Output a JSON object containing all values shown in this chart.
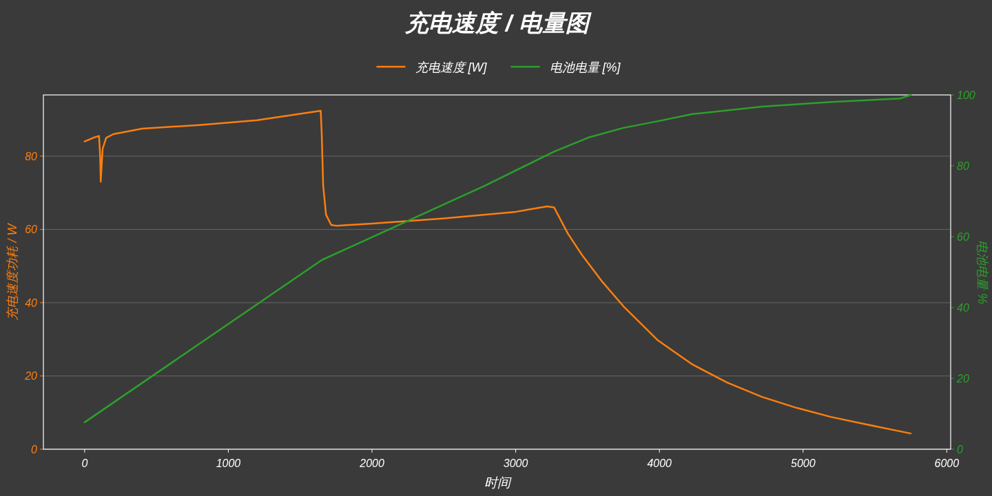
{
  "chart_data": {
    "type": "line",
    "title": "充电速度 / 电量图",
    "xlabel": "时间",
    "ylabel": "充电速度功耗 / W",
    "y2label": "电池电量 %",
    "xlim": [
      -287,
      6027
    ],
    "ylim": [
      0,
      96.7
    ],
    "y2lim": [
      0,
      100
    ],
    "xticks": [
      0,
      1000,
      2000,
      3000,
      4000,
      5000,
      6000
    ],
    "yticks": [
      0,
      20,
      40,
      60,
      80
    ],
    "y2ticks": [
      0,
      20,
      40,
      60,
      80,
      100
    ],
    "grid": "y",
    "legend": "top",
    "series": [
      {
        "name": "充电速度 [W]",
        "color": "#ff7f0e",
        "x": [
          0,
          60,
          100,
          108,
          112,
          125,
          150,
          200,
          400,
          800,
          1200,
          1643,
          1650,
          1660,
          1680,
          1716,
          1750,
          2000,
          2500,
          3000,
          3219,
          3267,
          3364,
          3460,
          3605,
          3750,
          3990,
          4231,
          4472,
          4713,
          4954,
          5195,
          5436,
          5749
        ],
        "values": [
          84,
          85,
          85.5,
          80,
          73,
          82,
          85,
          86,
          87.5,
          88.5,
          89.8,
          92.4,
          86,
          72,
          64,
          61.2,
          61,
          61.6,
          63,
          64.8,
          66.3,
          66,
          58.8,
          53.1,
          45.6,
          39,
          29.7,
          23.1,
          18.2,
          14.3,
          11.3,
          8.8,
          6.8,
          4.3
        ]
      },
      {
        "name": "电池电量 [%]",
        "color": "#2ca02c",
        "axis": "y2",
        "x": [
          0,
          1650,
          2786,
          3267,
          3508,
          3750,
          3990,
          4231,
          4713,
          5195,
          5677,
          5749
        ],
        "values": [
          7.6,
          53.4,
          74.4,
          84,
          88,
          90.7,
          92.6,
          94.6,
          96.7,
          98,
          99,
          100
        ]
      }
    ]
  }
}
